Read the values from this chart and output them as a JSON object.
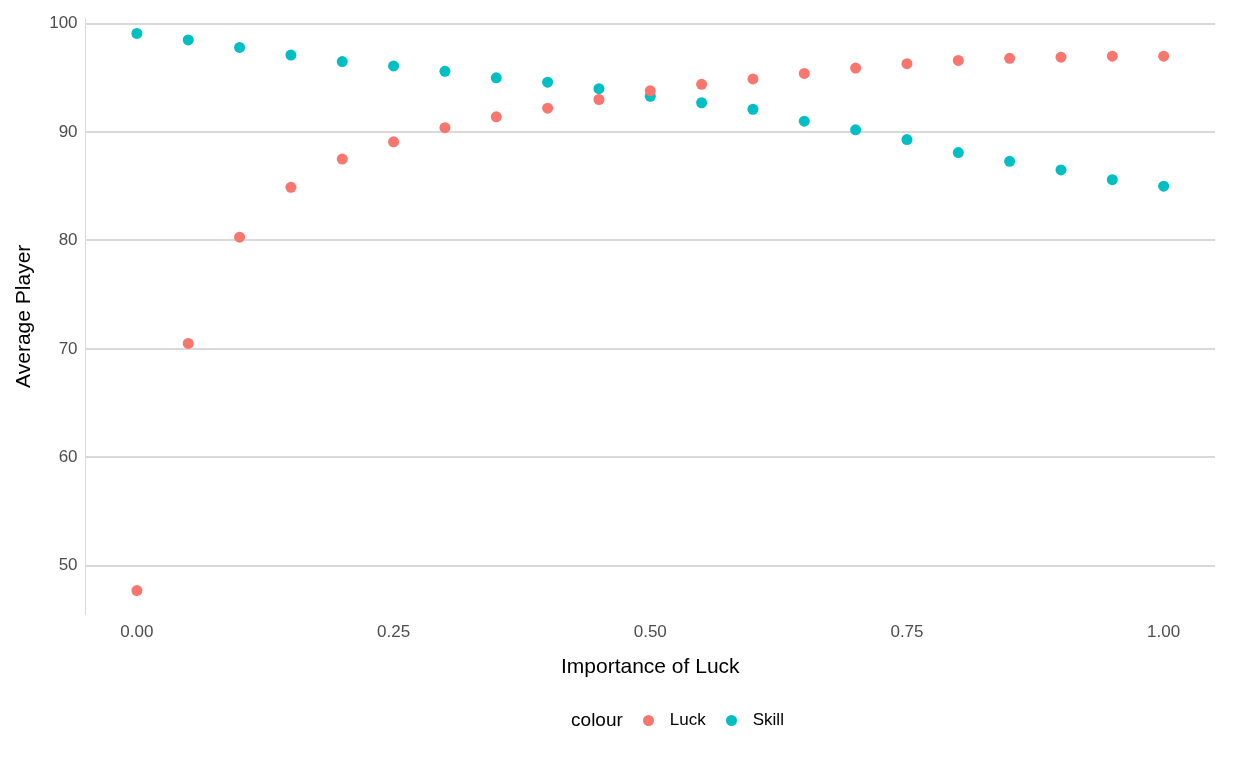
{
  "chart_data": {
    "type": "scatter",
    "xlabel": "Importance of Luck",
    "ylabel": "Average Player",
    "legend_title": "colour",
    "legend": "bottom",
    "grid": "y",
    "marker": "circle",
    "x": [
      0,
      0.05,
      0.1,
      0.15,
      0.2,
      0.25,
      0.3,
      0.35,
      0.4,
      0.45,
      0.5,
      0.55,
      0.6,
      0.65,
      0.7,
      0.75,
      0.8,
      0.85,
      0.9,
      0.95,
      1
    ],
    "xlim": [
      -0.05,
      1.05
    ],
    "xticks": [
      {
        "value": 0,
        "label": "0.00"
      },
      0.25,
      {
        "value": 0.5,
        "label": "0.50"
      },
      0.75,
      {
        "value": 1,
        "label": "1.00"
      }
    ],
    "ylim": [
      45.5,
      100.5
    ],
    "yticks": [
      50,
      60,
      70,
      80,
      90,
      100
    ],
    "series": [
      {
        "name": "Luck",
        "color": "#f8766d",
        "values": [
          47.7,
          70.5,
          80.3,
          84.9,
          87.5,
          89.1,
          90.4,
          91.4,
          92.2,
          93.0,
          93.8,
          94.4,
          94.9,
          95.4,
          95.9,
          96.3,
          96.6,
          96.8,
          96.9,
          97.0,
          97.0
        ]
      },
      {
        "name": "Skill",
        "color": "#00bfc4",
        "values": [
          99.1,
          98.5,
          97.8,
          97.1,
          96.5,
          96.1,
          95.6,
          95.0,
          94.6,
          94.0,
          93.3,
          92.7,
          92.1,
          91.0,
          90.2,
          89.3,
          88.1,
          87.3,
          86.5,
          85.6,
          85.0
        ]
      }
    ]
  }
}
